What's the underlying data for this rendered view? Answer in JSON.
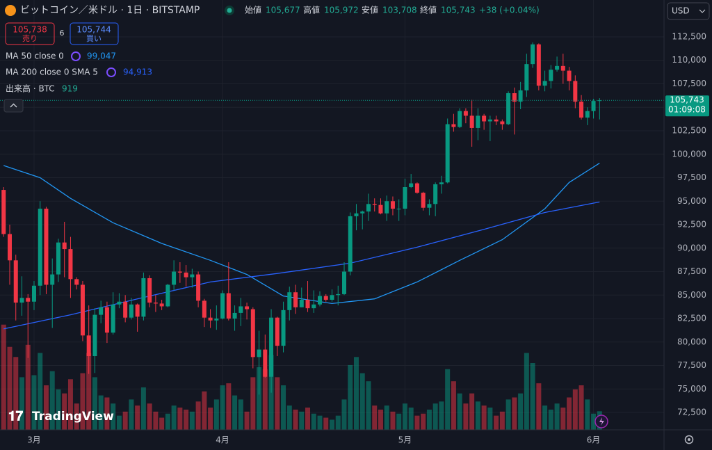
{
  "header": {
    "symbol": "ビットコイン／米ドル · 1日 · BITSTAMP",
    "open_label": "始値",
    "open": "105,677",
    "high_label": "高値",
    "high": "105,972",
    "low_label": "安値",
    "low": "103,708",
    "close_label": "終値",
    "close": "105,743",
    "change": "+38 (+0.04%)"
  },
  "trade": {
    "sell_price": "105,738",
    "sell_label": "売り",
    "spread": "6",
    "buy_price": "105,744",
    "buy_label": "買い"
  },
  "currency": "USD",
  "price_label": "105,743",
  "countdown": "01:09:08",
  "logo": "TradingView",
  "chart_data": {
    "type": "candlestick",
    "open": [
      96200,
      91500,
      88700,
      84200,
      84700,
      84300,
      86000,
      94200,
      86100,
      87200,
      90600,
      89900,
      86700,
      86100,
      80700,
      78500,
      82900,
      83700,
      81000,
      84000,
      84300,
      82600,
      84000,
      82700,
      86800,
      84200,
      84100,
      83800,
      86100,
      87500,
      87400,
      86900,
      87200,
      84400,
      82600,
      82300,
      82500,
      85200,
      82500,
      83100,
      83800,
      83500,
      78400,
      79200,
      76300,
      82600,
      79600,
      83400,
      85300,
      83700,
      84500,
      83600,
      84000,
      84900,
      84500,
      85000,
      85100,
      87500,
      93400,
      93700,
      93900,
      94700,
      94600,
      93700,
      95000,
      94200,
      94200,
      96500,
      96900,
      95900,
      94300,
      94700,
      96800,
      97000,
      103200,
      102900,
      104600,
      104100,
      102800,
      104100,
      103500,
      103700,
      103500,
      103200,
      106500,
      105600,
      106800,
      109600,
      111700,
      107300,
      107800,
      109000,
      109400,
      108900,
      107800,
      105600,
      103900,
      104600,
      105677
    ],
    "high": [
      96500,
      92500,
      89300,
      87000,
      85100,
      86500,
      95000,
      94400,
      88900,
      91000,
      92800,
      91200,
      86900,
      86500,
      83900,
      83600,
      84400,
      84300,
      85300,
      85200,
      85000,
      84700,
      84100,
      87400,
      87100,
      85000,
      84500,
      86200,
      88700,
      88500,
      88200,
      87800,
      87500,
      84600,
      83500,
      83900,
      85500,
      88500,
      83900,
      84700,
      84200,
      83700,
      81200,
      80800,
      83500,
      82700,
      84300,
      85900,
      86100,
      85800,
      86500,
      85500,
      85400,
      85100,
      85600,
      86000,
      88500,
      93800,
      94700,
      94000,
      95800,
      95300,
      95300,
      95600,
      95500,
      95200,
      97400,
      97900,
      97000,
      96000,
      95200,
      97000,
      97700,
      103800,
      104300,
      104900,
      104900,
      105800,
      104900,
      104300,
      104100,
      104100,
      103700,
      106700,
      107100,
      107700,
      110700,
      111900,
      111800,
      108900,
      109500,
      110400,
      110700,
      109300,
      108400,
      106300,
      105000,
      105900,
      105972
    ],
    "low": [
      91200,
      86100,
      82300,
      82800,
      78300,
      83400,
      85000,
      85100,
      81500,
      86400,
      86900,
      84700,
      85600,
      80100,
      76600,
      76700,
      82000,
      79900,
      80800,
      83600,
      82100,
      82400,
      81100,
      82300,
      83700,
      83200,
      83400,
      83700,
      85500,
      86300,
      85900,
      85800,
      83700,
      81600,
      81500,
      81300,
      82400,
      82300,
      81200,
      81700,
      82400,
      77200,
      74400,
      76200,
      74600,
      78500,
      78900,
      82300,
      83000,
      83700,
      83200,
      83100,
      83800,
      84300,
      84300,
      83900,
      85000,
      87100,
      91900,
      92000,
      92900,
      93900,
      93600,
      92900,
      93500,
      92900,
      93500,
      96400,
      95800,
      94000,
      93500,
      93400,
      95800,
      96900,
      102400,
      102800,
      103300,
      100800,
      101500,
      102600,
      101400,
      103100,
      102600,
      103100,
      102100,
      104800,
      106100,
      109200,
      106800,
      106700,
      107000,
      108800,
      107500,
      106800,
      104900,
      103700,
      103100,
      103800,
      103708
    ],
    "close": [
      91500,
      88700,
      84200,
      84700,
      84300,
      86000,
      94200,
      86100,
      87200,
      90600,
      89900,
      86700,
      86100,
      80700,
      78500,
      82900,
      83700,
      81000,
      84000,
      84300,
      82600,
      84000,
      82700,
      86800,
      84200,
      84100,
      83800,
      86100,
      87500,
      87400,
      86900,
      87200,
      84400,
      82600,
      82300,
      82500,
      85200,
      82500,
      83100,
      83800,
      83500,
      78400,
      79200,
      76300,
      82600,
      79600,
      83400,
      85300,
      83700,
      84500,
      83600,
      84000,
      84900,
      84500,
      85000,
      85100,
      87500,
      93400,
      93700,
      93900,
      94700,
      94600,
      93700,
      95000,
      94200,
      94200,
      96500,
      96900,
      95900,
      94300,
      94700,
      96800,
      97000,
      103200,
      102900,
      104600,
      104100,
      102800,
      104100,
      103500,
      103700,
      103500,
      103200,
      106500,
      105600,
      106800,
      109600,
      111700,
      107300,
      107800,
      109000,
      109400,
      108900,
      107800,
      105600,
      103900,
      104600,
      105677,
      105743
    ],
    "volume": [
      5200,
      4100,
      3600,
      2600,
      4200,
      2700,
      3800,
      2200,
      2900,
      2000,
      1800,
      2500,
      1300,
      2800,
      3800,
      2600,
      1700,
      1600,
      1300,
      700,
      900,
      1500,
      1200,
      2100,
      1300,
      900,
      600,
      800,
      1200,
      1100,
      1000,
      900,
      1400,
      1900,
      1100,
      1500,
      2200,
      2300,
      1700,
      1500,
      900,
      2600,
      3100,
      3000,
      3700,
      2600,
      2200,
      1200,
      1000,
      900,
      1100,
      800,
      700,
      600,
      500,
      700,
      1500,
      3200,
      3600,
      2800,
      2400,
      1200,
      1000,
      1200,
      900,
      800,
      1300,
      1100,
      700,
      800,
      1000,
      1300,
      1400,
      3000,
      2400,
      1800,
      1300,
      1800,
      1400,
      1200,
      1100,
      700,
      900,
      1500,
      1600,
      1800,
      3800,
      3300,
      2300,
      1200,
      1000,
      1300,
      1100,
      1600,
      2000,
      2200,
      1500,
      800,
      919
    ],
    "volume_name": "出来高 · BTC",
    "volume_label": "919",
    "volume_lim": [
      0,
      5500
    ],
    "up_color": "#089981",
    "down_color": "#f23645",
    "ma_lines": [
      {
        "name": "MA 50 close 0",
        "value_label": "99,047",
        "color": "#2196f3",
        "x": [
          0,
          6,
          11,
          18,
          26,
          34,
          40,
          46,
          54,
          61,
          68,
          75,
          82,
          89,
          93,
          98
        ],
        "values": [
          98800,
          97500,
          95300,
          92700,
          90500,
          88700,
          87200,
          84900,
          84100,
          84600,
          86400,
          88700,
          90900,
          94200,
          97000,
          99047
        ]
      },
      {
        "name": "MA 200 close 0 SMA 5",
        "value_label": "94,913",
        "color": "#2962ff",
        "x": [
          0,
          11,
          22,
          34,
          45,
          57,
          68,
          79,
          89,
          98
        ],
        "values": [
          81400,
          82900,
          84600,
          86400,
          87300,
          88400,
          90100,
          92000,
          93800,
          94913
        ]
      }
    ],
    "xlim": [
      -0.6,
      108.6
    ],
    "xticks": [
      {
        "value": 5,
        "label": "3月"
      },
      {
        "value": 36,
        "label": "4月"
      },
      {
        "value": 66,
        "label": "5月"
      },
      {
        "value": 97,
        "label": "6月"
      }
    ],
    "ylim": [
      70650,
      116425
    ],
    "yticks": [
      {
        "value": 72500,
        "label": "72,500"
      },
      {
        "value": 75000,
        "label": "75,000"
      },
      {
        "value": 77500,
        "label": "77,500"
      },
      {
        "value": 80000,
        "label": "80,000"
      },
      {
        "value": 82500,
        "label": "82,500"
      },
      {
        "value": 85000,
        "label": "85,000"
      },
      {
        "value": 87500,
        "label": "87,500"
      },
      {
        "value": 90000,
        "label": "90,000"
      },
      {
        "value": 92500,
        "label": "92,500"
      },
      {
        "value": 95000,
        "label": "95,000"
      },
      {
        "value": 97500,
        "label": "97,500"
      },
      {
        "value": 100000,
        "label": "100,000"
      },
      {
        "value": 102500,
        "label": "102,500"
      },
      {
        "value": 105000,
        "label": "105,000"
      },
      {
        "value": 107500,
        "label": "107,500"
      },
      {
        "value": 110000,
        "label": "110,000"
      },
      {
        "value": 112500,
        "label": "112,500"
      }
    ],
    "grid": true
  }
}
